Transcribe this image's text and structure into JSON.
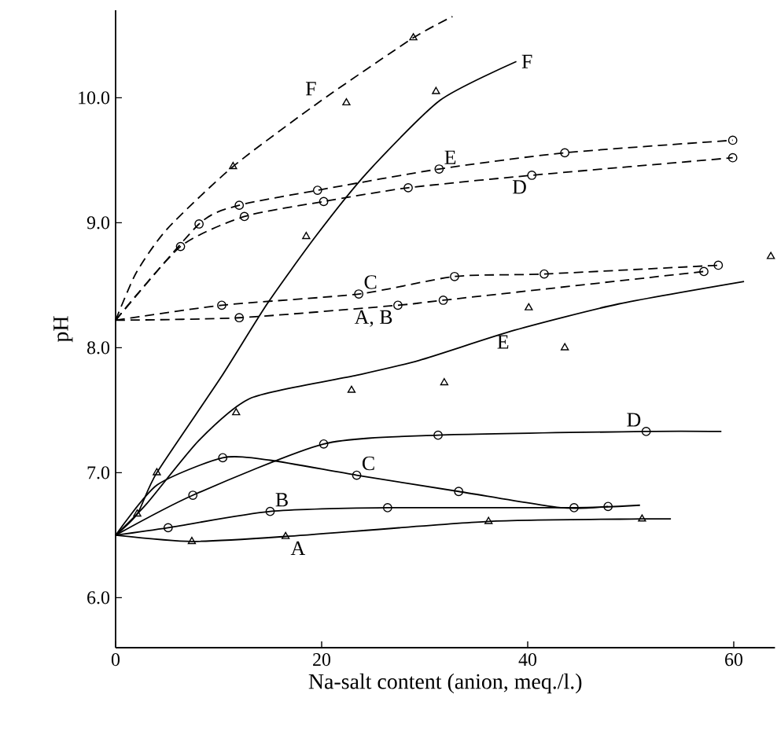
{
  "chart_data": {
    "type": "line",
    "xlabel": "Na-salt content (anion, meq./l.)",
    "ylabel": "pH",
    "xlim": [
      0,
      64
    ],
    "ylim": [
      5.6,
      10.7
    ],
    "xticks": [
      0,
      20,
      40,
      60
    ],
    "yticks": [
      {
        "value": 6,
        "label": "6.0"
      },
      {
        "value": 7,
        "label": "7.0"
      },
      {
        "value": 8,
        "label": "8.0"
      },
      {
        "value": 9,
        "label": "9.0"
      },
      {
        "value": 10,
        "label": "10.0"
      }
    ],
    "grid": false,
    "series": [
      {
        "line_style": "dashed",
        "marker": "none",
        "color": "#000000",
        "x": [
          0,
          2,
          5,
          11.4,
          20,
          28.9,
          32.7
        ],
        "values": [
          8.22,
          8.6,
          8.95,
          9.45,
          9.98,
          10.48,
          10.65
        ]
      },
      {
        "line_style": "dashed",
        "marker": "none",
        "color": "#000000",
        "x": [
          0,
          8.1,
          12.0,
          19.6,
          31.4,
          43.6,
          59.9
        ],
        "values": [
          8.22,
          8.99,
          9.14,
          9.26,
          9.43,
          9.56,
          9.66
        ]
      },
      {
        "line_style": "dashed",
        "marker": "none",
        "color": "#000000",
        "x": [
          0,
          6.3,
          12.5,
          20.2,
          28.4,
          40.4,
          59.9
        ],
        "values": [
          8.22,
          8.81,
          9.05,
          9.17,
          9.28,
          9.38,
          9.52
        ]
      },
      {
        "line_style": "dashed",
        "marker": "none",
        "color": "#000000",
        "x": [
          0,
          10.3,
          23.6,
          32.9,
          41.6,
          58.5
        ],
        "values": [
          8.22,
          8.34,
          8.43,
          8.57,
          8.59,
          8.66
        ]
      },
      {
        "line_style": "dashed",
        "marker": "none",
        "color": "#000000",
        "x": [
          0,
          12.0,
          27.4,
          31.8,
          57.1
        ],
        "values": [
          8.22,
          8.24,
          8.34,
          8.38,
          8.61
        ]
      },
      {
        "line_style": "solid",
        "marker": "none",
        "color": "#000000",
        "x": [
          0,
          2.1,
          4.0,
          10.2,
          14.7,
          19.5,
          24.4,
          31.5,
          38.9
        ],
        "values": [
          6.5,
          6.67,
          7.0,
          7.76,
          8.35,
          8.9,
          9.4,
          9.98,
          10.29
        ]
      },
      {
        "line_style": "solid",
        "marker": "none",
        "color": "#000000",
        "x": [
          0,
          3,
          8.1,
          13.2,
          23.4,
          29.5,
          38.7,
          48.8,
          61
        ],
        "values": [
          6.5,
          6.75,
          7.26,
          7.6,
          7.78,
          7.9,
          8.14,
          8.35,
          8.53
        ]
      },
      {
        "line_style": "solid",
        "marker": "none",
        "color": "#000000",
        "x": [
          0,
          7.5,
          20.2,
          31.3,
          51.5,
          58.8
        ],
        "values": [
          6.5,
          6.82,
          7.23,
          7.3,
          7.33,
          7.33
        ]
      },
      {
        "line_style": "solid",
        "marker": "none",
        "color": "#000000",
        "x": [
          0,
          4,
          10.4,
          15,
          23.4,
          33.3,
          43.2,
          47.8
        ],
        "values": [
          6.5,
          6.9,
          7.12,
          7.1,
          6.98,
          6.85,
          6.72,
          6.73
        ]
      },
      {
        "line_style": "solid",
        "marker": "none",
        "color": "#000000",
        "x": [
          0,
          5.1,
          15,
          26.4,
          44.5,
          50.9
        ],
        "values": [
          6.5,
          6.56,
          6.69,
          6.72,
          6.72,
          6.74
        ]
      },
      {
        "line_style": "solid",
        "marker": "none",
        "color": "#000000",
        "x": [
          0,
          7.4,
          16.5,
          36.2,
          51.1,
          53.9
        ],
        "values": [
          6.5,
          6.45,
          6.49,
          6.61,
          6.63,
          6.63
        ]
      },
      {
        "type": "scatter",
        "marker": "triangle",
        "color": "#000000",
        "x": [
          7.4,
          16.5,
          36.2,
          51.1,
          11.7,
          22.9,
          31.9,
          40.1,
          43.6,
          63.6,
          18.5,
          11.4,
          22.4,
          31.1,
          28.9
        ],
        "values": [
          6.45,
          6.49,
          6.61,
          6.63,
          7.48,
          7.66,
          7.72,
          8.32,
          8.0,
          8.73,
          8.89,
          9.45,
          9.96,
          10.05,
          10.48
        ]
      },
      {
        "type": "scatter",
        "marker": "triangle",
        "color": "#000000",
        "x": [
          2.1,
          4.0
        ],
        "values": [
          6.67,
          7.0
        ]
      },
      {
        "type": "scatter",
        "marker": "circle",
        "color": "#000000",
        "x": [
          8.1,
          12.0,
          19.6,
          31.4,
          43.6,
          59.9,
          10.3,
          23.6,
          32.9,
          41.6,
          58.5,
          57.1,
          10.4,
          23.4,
          33.3,
          47.8
        ],
        "values": [
          8.99,
          9.14,
          9.26,
          9.43,
          9.56,
          9.66,
          8.34,
          8.43,
          8.57,
          8.59,
          8.66,
          8.61,
          7.12,
          6.98,
          6.85,
          6.73
        ]
      },
      {
        "type": "scatter",
        "marker": "circle",
        "color": "#000000",
        "x": [
          6.3,
          12.5,
          20.2,
          28.4,
          40.4,
          59.9,
          12.0,
          27.4,
          31.8,
          7.5,
          20.2,
          31.3,
          51.5,
          5.1,
          15,
          26.4,
          44.5
        ],
        "values": [
          8.81,
          9.05,
          9.17,
          9.28,
          9.38,
          9.52,
          8.24,
          8.34,
          8.38,
          6.82,
          7.23,
          7.3,
          7.33,
          6.56,
          6.69,
          6.72,
          6.72
        ]
      }
    ],
    "annotations": [
      {
        "text": "F",
        "x": 20,
        "y": 9.98
      },
      {
        "text": "F",
        "x": 38.9,
        "y": 10.29
      },
      {
        "text": "E",
        "x": 31.4,
        "y": 9.43
      },
      {
        "text": "D",
        "x": 40.4,
        "y": 9.38
      },
      {
        "text": "C",
        "x": 23.6,
        "y": 8.43
      },
      {
        "text": "A, B",
        "x": 27.4,
        "y": 8.34
      },
      {
        "text": "E",
        "x": 38.7,
        "y": 8.14
      },
      {
        "text": "D",
        "x": 51.5,
        "y": 7.33
      },
      {
        "text": "C",
        "x": 23.4,
        "y": 6.98
      },
      {
        "text": "B",
        "x": 15,
        "y": 6.69
      },
      {
        "text": "A",
        "x": 16.5,
        "y": 6.49
      }
    ]
  }
}
